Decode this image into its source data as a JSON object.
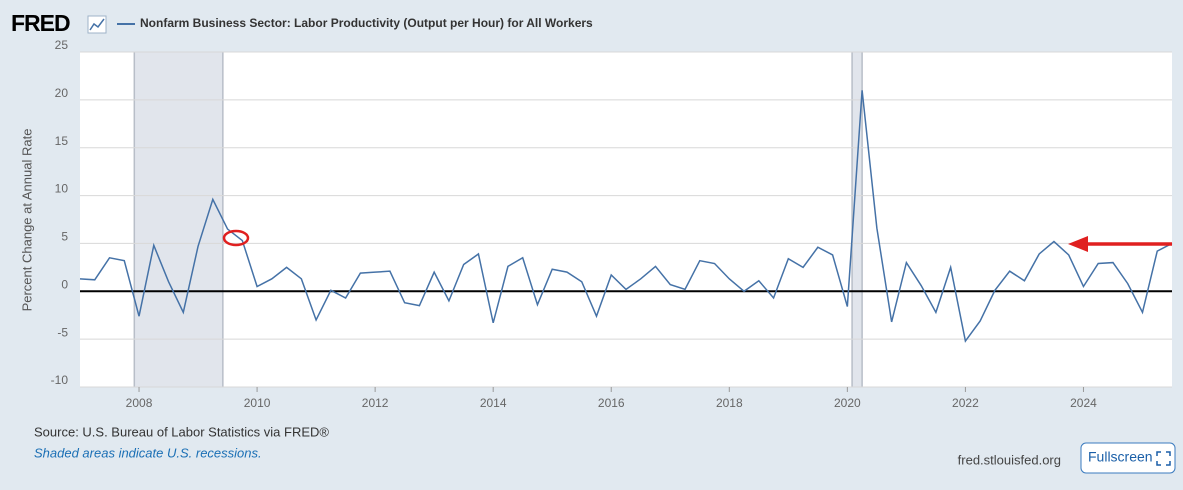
{
  "chart_data": {
    "type": "line",
    "logo": "FRED",
    "y_label": "Percent Change at Annual Rate",
    "source": "Source: U.S. Bureau of Labor Statistics via FRED®",
    "note": "Shaded areas indicate U.S. recessions.",
    "site": "fred.stlouisfed.org",
    "button": "Fullscreen",
    "x": [
      2007,
      2007.25,
      2007.5,
      2007.75,
      2008,
      2008.25,
      2008.5,
      2008.75,
      2009,
      2009.25,
      2009.5,
      2009.75,
      2010,
      2010.25,
      2010.5,
      2010.75,
      2011,
      2011.25,
      2011.5,
      2011.75,
      2012,
      2012.25,
      2012.5,
      2012.75,
      2013,
      2013.25,
      2013.5,
      2013.75,
      2014,
      2014.25,
      2014.5,
      2014.75,
      2015,
      2015.25,
      2015.5,
      2015.75,
      2016,
      2016.25,
      2016.5,
      2016.75,
      2017,
      2017.25,
      2017.5,
      2017.75,
      2018,
      2018.25,
      2018.5,
      2018.75,
      2019,
      2019.25,
      2019.5,
      2019.75,
      2020,
      2020.25,
      2020.5,
      2020.75,
      2021,
      2021.25,
      2021.5,
      2021.75,
      2022,
      2022.25,
      2022.5,
      2022.75,
      2023,
      2023.25,
      2023.5,
      2023.75,
      2024,
      2024.25,
      2024.5,
      2024.75,
      2025,
      2025.25,
      2025.5
    ],
    "series": [
      {
        "name": "Nonfarm Business Sector: Labor Productivity (Output per Hour) for All Workers",
        "color": "#4572a7",
        "values": [
          1.3,
          1.2,
          3.5,
          3.2,
          -2.6,
          4.8,
          1.0,
          -2.2,
          4.7,
          9.6,
          6.5,
          5.3,
          0.5,
          1.3,
          2.5,
          1.3,
          -3.0,
          0.1,
          -0.7,
          1.9,
          2.0,
          2.1,
          -1.2,
          -1.5,
          2.0,
          -1.0,
          2.8,
          3.9,
          -3.3,
          2.6,
          3.5,
          -1.4,
          2.3,
          2.0,
          1.0,
          -2.6,
          1.7,
          0.2,
          1.3,
          2.6,
          0.7,
          0.2,
          3.2,
          2.9,
          1.3,
          0.0,
          1.1,
          -0.7,
          3.4,
          2.5,
          4.6,
          3.8,
          -1.6,
          21.0,
          6.6,
          -3.2,
          3.0,
          0.6,
          -2.2,
          2.5,
          -5.2,
          -3.1,
          0.1,
          2.1,
          1.1,
          3.9,
          5.2,
          3.8,
          0.5,
          2.9,
          3.0,
          0.8,
          -2.2,
          4.2,
          5.0
        ]
      }
    ],
    "xlim": [
      2007,
      2025.5
    ],
    "ylim": [
      -10,
      25
    ],
    "xticks": [
      2008,
      2010,
      2012,
      2014,
      2016,
      2018,
      2020,
      2022,
      2024
    ],
    "yticks": [
      25,
      20,
      15,
      10,
      5,
      0,
      -5,
      -10
    ],
    "grid": true,
    "recessions": [
      [
        2007.92,
        2009.42
      ],
      [
        2020.08,
        2020.25
      ]
    ],
    "recession_color": "#e1e5ec"
  }
}
